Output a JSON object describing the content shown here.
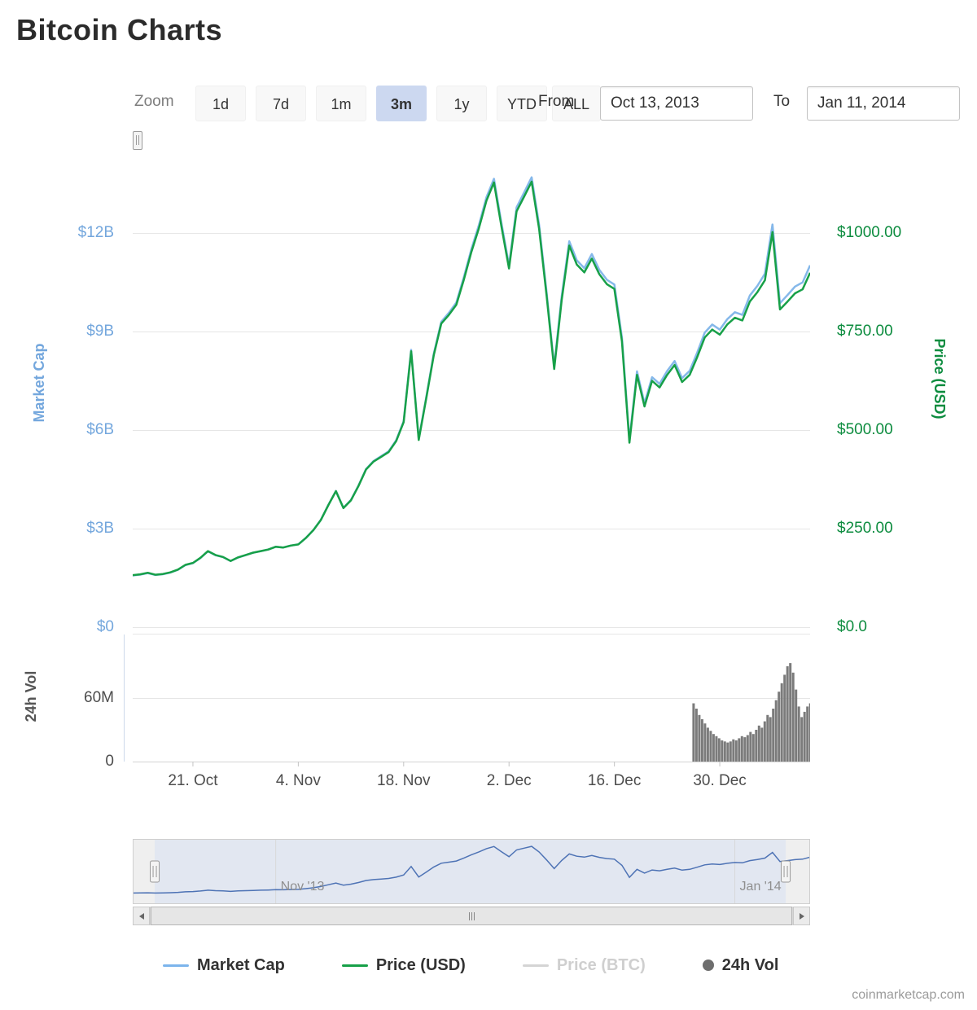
{
  "page": {
    "title": "Bitcoin Charts",
    "footer": "coinmarketcap.com"
  },
  "toolbar": {
    "zoom_label": "Zoom",
    "buttons": [
      "1d",
      "7d",
      "1m",
      "3m",
      "1y",
      "YTD",
      "ALL"
    ],
    "selected": "3m",
    "from_label": "From",
    "from_value": "Oct 13, 2013",
    "to_label": "To",
    "to_value": "Jan 11, 2014"
  },
  "legend": {
    "items": [
      {
        "label": "Market Cap",
        "color": "#7cb5ec",
        "marker": "line",
        "disabled": false
      },
      {
        "label": "Price (USD)",
        "color": "#17a048",
        "marker": "line",
        "disabled": false
      },
      {
        "label": "Price (BTC)",
        "color": "#d4d4d4",
        "marker": "line",
        "disabled": true
      },
      {
        "label": "24h Vol",
        "color": "#6e6e6e",
        "marker": "circle",
        "disabled": false
      }
    ]
  },
  "chart_data": {
    "type": "line",
    "title": "Bitcoin Charts",
    "date_range": {
      "from": "Oct 13, 2013",
      "to": "Jan 11, 2014"
    },
    "colors": {
      "price": "#17a048",
      "market_cap": "#85b8ea",
      "volume": "#7b7b7b",
      "navigator": "#4e73b5"
    },
    "axes": {
      "left": {
        "title": "Market Cap",
        "unit": "USD billions",
        "max": 15,
        "ticks": [
          {
            "value": 12,
            "label": "$12B"
          },
          {
            "value": 9,
            "label": "$9B"
          },
          {
            "value": 6,
            "label": "$6B"
          },
          {
            "value": 3,
            "label": "$3B"
          },
          {
            "value": 0,
            "label": "$0"
          }
        ]
      },
      "right": {
        "title": "Price (USD)",
        "unit": "USD",
        "max": 1250,
        "ticks": [
          {
            "value": 1000,
            "label": "$1000.00"
          },
          {
            "value": 750,
            "label": "$750.00"
          },
          {
            "value": 500,
            "label": "$500.00"
          },
          {
            "value": 250,
            "label": "$250.00"
          },
          {
            "value": 0,
            "label": "$0.0"
          }
        ]
      },
      "volume": {
        "title": "24h Vol",
        "unit": "USD millions",
        "max": 120.8,
        "ticks": [
          {
            "value": 60,
            "label": "60M"
          },
          {
            "value": 0,
            "label": "0"
          }
        ]
      },
      "x": {
        "start": "2013-10-13",
        "end": "2014-01-11",
        "ticks": [
          {
            "day": 8,
            "label": "21. Oct"
          },
          {
            "day": 22,
            "label": "4. Nov"
          },
          {
            "day": 36,
            "label": "18. Nov"
          },
          {
            "day": 50,
            "label": "2. Dec"
          },
          {
            "day": 64,
            "label": "16. Dec"
          },
          {
            "day": 78,
            "label": "30. Dec"
          }
        ]
      }
    },
    "navigator": {
      "labels": [
        {
          "day": 19,
          "label": "Nov '13"
        },
        {
          "day": 80,
          "label": "Jan '14"
        }
      ],
      "handle_fracs": [
        0.0325,
        0.964
      ]
    },
    "series": {
      "price_usd": [
        132,
        134,
        138,
        133,
        135,
        139,
        146,
        158,
        163,
        176,
        193,
        183,
        178,
        168,
        177,
        183,
        189,
        193,
        197,
        204,
        202,
        207,
        210,
        226,
        246,
        272,
        310,
        345,
        302,
        322,
        358,
        400,
        420,
        432,
        444,
        472,
        520,
        700,
        475,
        580,
        690,
        770,
        792,
        818,
        882,
        952,
        1012,
        1082,
        1128,
        1015,
        910,
        1055,
        1092,
        1130,
        1010,
        840,
        655,
        830,
        968,
        920,
        900,
        935,
        895,
        870,
        858,
        725,
        468,
        640,
        560,
        625,
        608,
        640,
        665,
        622,
        640,
        685,
        735,
        755,
        742,
        768,
        785,
        778,
        826,
        850,
        880,
        1002,
        806,
        826,
        847,
        857,
        899
      ],
      "market_cap_supply_m": {
        "start": 11.93,
        "end": 12.25
      },
      "volume_24h_m": {
        "start_frac": 0.828,
        "step_frac": 0.0042,
        "values": [
          55,
          50,
          44,
          40,
          36,
          32,
          29,
          26,
          24,
          22,
          20,
          19,
          18,
          19,
          21,
          20,
          22,
          24,
          23,
          25,
          28,
          26,
          30,
          34,
          32,
          38,
          44,
          42,
          50,
          58,
          66,
          74,
          82,
          90,
          93,
          84,
          68,
          52,
          42,
          47,
          52,
          55
        ]
      }
    }
  }
}
